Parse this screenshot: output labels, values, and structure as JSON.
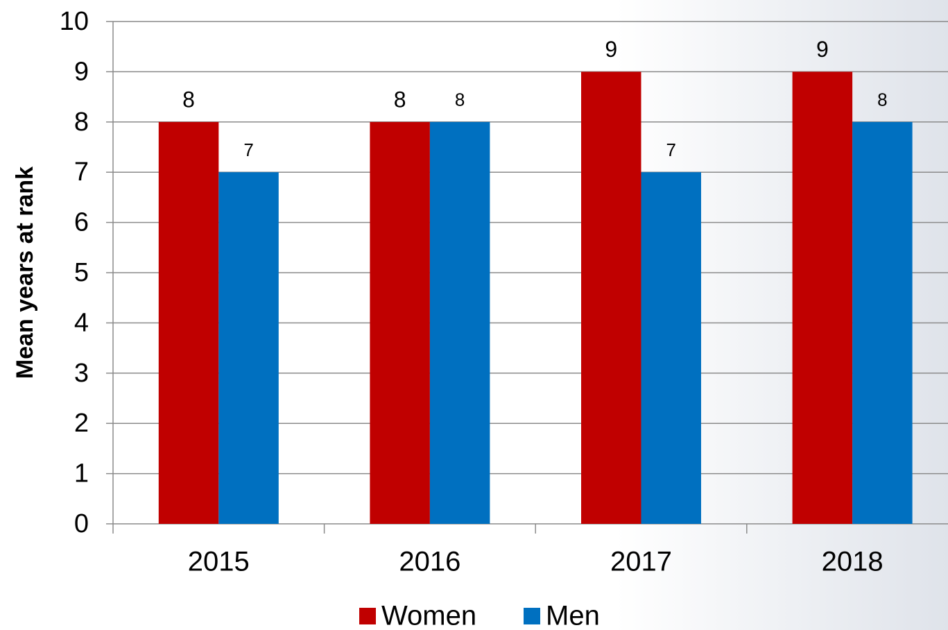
{
  "chart_data": {
    "type": "bar",
    "y_label": "Mean years at rank",
    "categories": [
      "2015",
      "2016",
      "2017",
      "2018"
    ],
    "series": [
      {
        "name": "Women",
        "color": "#c00000",
        "values": [
          8,
          8,
          9,
          9
        ]
      },
      {
        "name": "Men",
        "color": "#0070c0",
        "values": [
          7,
          8,
          7,
          8
        ]
      }
    ],
    "ylim": [
      0,
      10
    ],
    "yticks": [
      0,
      1,
      2,
      3,
      4,
      5,
      6,
      7,
      8,
      9,
      10
    ],
    "grid": true,
    "legend": "bottom"
  }
}
